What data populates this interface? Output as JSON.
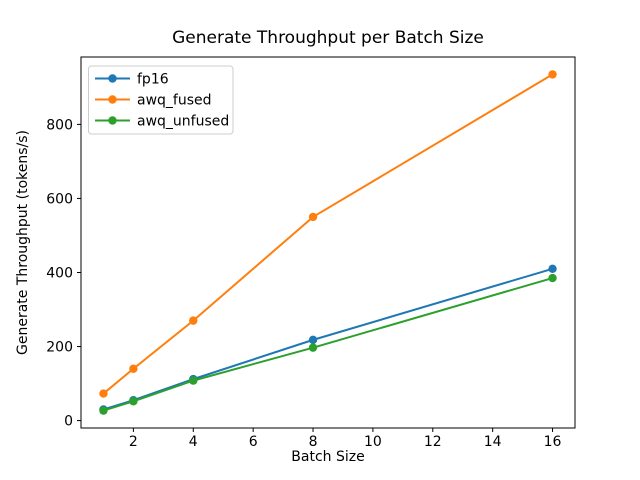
{
  "chart_data": {
    "type": "line",
    "title": "Generate Throughput per Batch Size",
    "xlabel": "Batch Size",
    "ylabel": "Generate Throughput (tokens/s)",
    "x": [
      1,
      2,
      4,
      8,
      16
    ],
    "series": [
      {
        "name": "fp16",
        "color": "#1f77b4",
        "values": [
          30,
          55,
          112,
          218,
          410
        ]
      },
      {
        "name": "awq_fused",
        "color": "#ff7f0e",
        "values": [
          73,
          140,
          270,
          550,
          935
        ]
      },
      {
        "name": "awq_unfused",
        "color": "#2ca02c",
        "values": [
          27,
          52,
          108,
          197,
          385
        ]
      }
    ],
    "xlim": [
      0.25,
      16.75
    ],
    "ylim": [
      -20,
      982
    ],
    "xticks": [
      2,
      4,
      6,
      8,
      10,
      12,
      14,
      16
    ],
    "yticks": [
      0,
      200,
      400,
      600,
      800
    ],
    "legend_position": "upper left",
    "legend_labels": [
      "fp16",
      "awq_fused",
      "awq_unfused"
    ],
    "grid": false,
    "marker": "circle",
    "background_color": "#ffffff",
    "spine_color": "#000000",
    "legend_border_color": "#cccccc"
  }
}
